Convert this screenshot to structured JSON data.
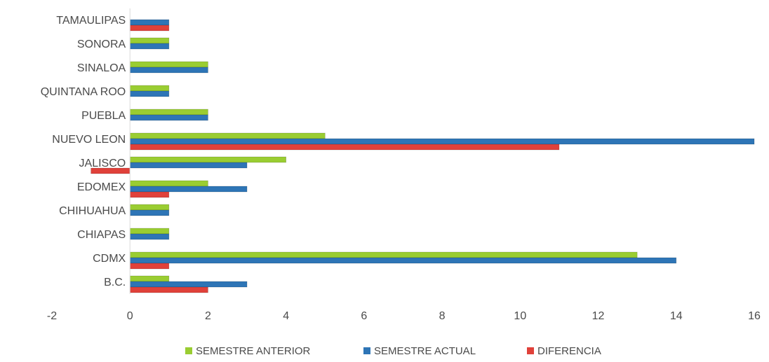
{
  "chart_data": {
    "type": "bar",
    "orientation": "horizontal",
    "title": "",
    "xlabel": "",
    "ylabel": "",
    "categories": [
      "TAMAULIPAS",
      "SONORA",
      "SINALOA",
      "QUINTANA ROO",
      "PUEBLA",
      "NUEVO LEON",
      "JALISCO",
      "EDOMEX",
      "CHIHUAHUA",
      "CHIAPAS",
      "CDMX",
      "B.C."
    ],
    "series": [
      {
        "name": "SEMESTRE ANTERIOR",
        "color": "#9ACD32",
        "values": [
          0,
          1,
          2,
          1,
          2,
          5,
          4,
          2,
          1,
          1,
          13,
          1
        ]
      },
      {
        "name": "SEMESTRE ACTUAL",
        "color": "#2E75B6",
        "values": [
          1,
          1,
          2,
          1,
          2,
          16,
          3,
          3,
          1,
          1,
          14,
          3
        ]
      },
      {
        "name": "DIFERENCIA",
        "color": "#E0413A",
        "values": [
          1,
          0,
          0,
          0,
          0,
          11,
          -1,
          1,
          0,
          0,
          1,
          2
        ]
      }
    ],
    "xlim": [
      -2,
      16
    ],
    "xticks": [
      "-2",
      "0",
      "2",
      "4",
      "6",
      "8",
      "10",
      "12",
      "14",
      "16"
    ],
    "grid": false,
    "legend_position": "bottom"
  }
}
